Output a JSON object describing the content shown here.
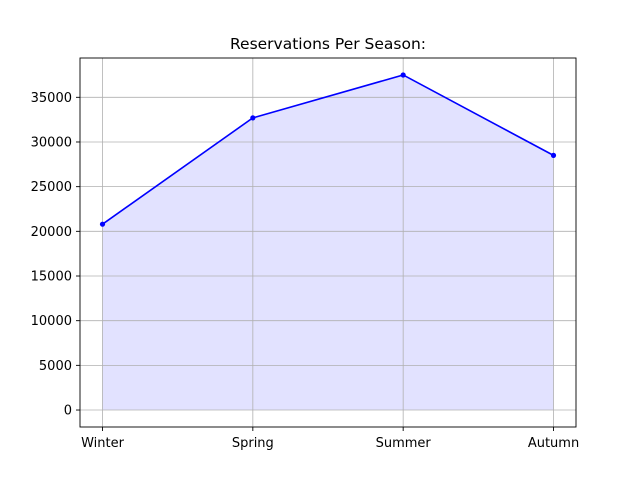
{
  "chart_data": {
    "type": "area",
    "title": "Reservations Per Season:",
    "xlabel": "",
    "ylabel": "",
    "categories": [
      "Winter",
      "Spring",
      "Summer",
      "Autumn"
    ],
    "series": [
      {
        "values": [
          20800,
          32700,
          37500,
          28500
        ]
      }
    ],
    "ylim": [
      -1900,
      39400
    ],
    "yticks": [
      0,
      5000,
      10000,
      15000,
      20000,
      25000,
      30000,
      35000
    ],
    "ytick_labels": [
      "0",
      "5000",
      "10000",
      "15000",
      "20000",
      "25000",
      "30000",
      "35000"
    ],
    "grid": true,
    "line_color": "#0000ff",
    "fill_color": "#e2e2ff",
    "grid_color": "#b0b0b0"
  }
}
